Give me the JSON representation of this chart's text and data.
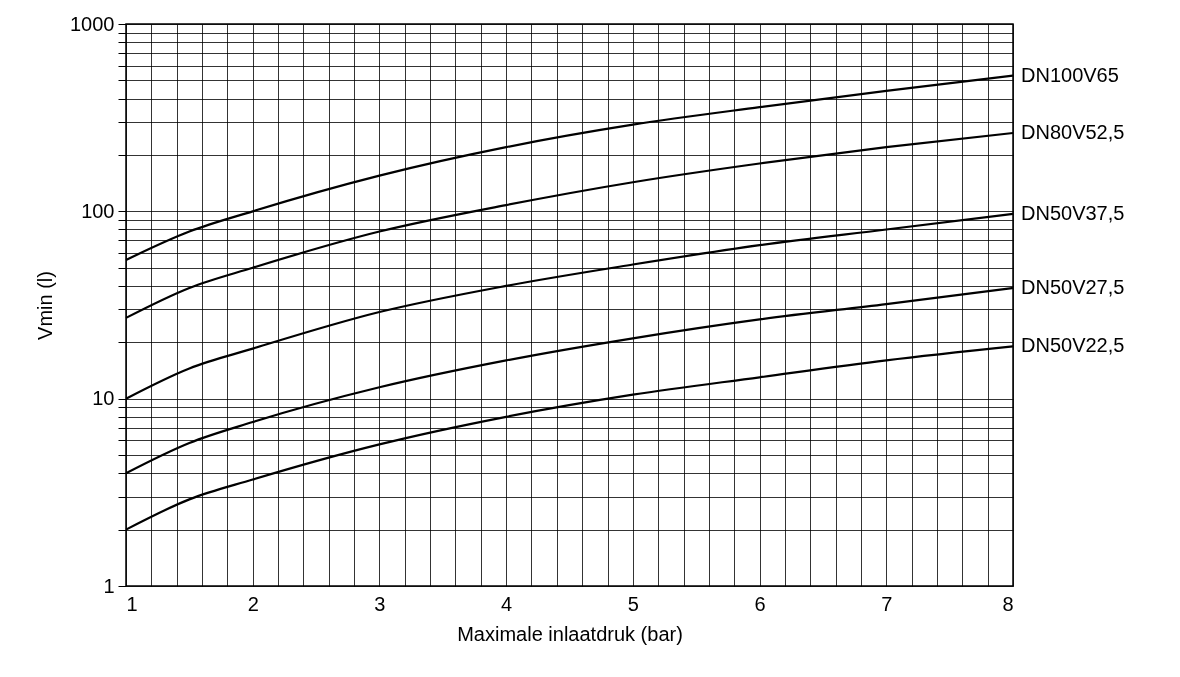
{
  "chart_data": {
    "type": "line",
    "xlabel": "Maximale inlaatdruk (bar)",
    "ylabel": "Vmin (l)",
    "log": "y",
    "grid": true,
    "legend": false,
    "marker": "none",
    "line_style": "solid",
    "x": [
      1,
      1.5,
      2,
      3,
      4,
      5,
      6,
      7,
      8
    ],
    "xlim": [
      1,
      8
    ],
    "ylim": [
      1,
      1000
    ],
    "xticks": [
      1,
      {
        "value": 1.2,
        "label": null
      },
      {
        "value": 1.4,
        "label": null
      },
      {
        "value": 1.6,
        "label": null
      },
      {
        "value": 1.8,
        "label": null
      },
      2,
      {
        "value": 2.2,
        "label": null
      },
      {
        "value": 2.4,
        "label": null
      },
      {
        "value": 2.6,
        "label": null
      },
      {
        "value": 2.8,
        "label": null
      },
      3,
      {
        "value": 3.2,
        "label": null
      },
      {
        "value": 3.4,
        "label": null
      },
      {
        "value": 3.6,
        "label": null
      },
      {
        "value": 3.8,
        "label": null
      },
      4,
      {
        "value": 4.2,
        "label": null
      },
      {
        "value": 4.4,
        "label": null
      },
      {
        "value": 4.6,
        "label": null
      },
      {
        "value": 4.8,
        "label": null
      },
      5,
      {
        "value": 5.2,
        "label": null
      },
      {
        "value": 5.4,
        "label": null
      },
      {
        "value": 5.6,
        "label": null
      },
      {
        "value": 5.8,
        "label": null
      },
      6,
      {
        "value": 6.2,
        "label": null
      },
      {
        "value": 6.4,
        "label": null
      },
      {
        "value": 6.6,
        "label": null
      },
      {
        "value": 6.8,
        "label": null
      },
      7,
      {
        "value": 7.2,
        "label": null
      },
      {
        "value": 7.4,
        "label": null
      },
      {
        "value": 7.6,
        "label": null
      },
      {
        "value": 7.8,
        "label": null
      },
      8
    ],
    "yticks": [
      1,
      {
        "value": 2,
        "label": null
      },
      {
        "value": 3,
        "label": null
      },
      {
        "value": 4,
        "label": null
      },
      {
        "value": 5,
        "label": null
      },
      {
        "value": 6,
        "label": null
      },
      {
        "value": 7,
        "label": null
      },
      {
        "value": 8,
        "label": null
      },
      {
        "value": 9,
        "label": null
      },
      10,
      {
        "value": 20,
        "label": null
      },
      {
        "value": 30,
        "label": null
      },
      {
        "value": 40,
        "label": null
      },
      {
        "value": 50,
        "label": null
      },
      {
        "value": 60,
        "label": null
      },
      {
        "value": 70,
        "label": null
      },
      {
        "value": 80,
        "label": null
      },
      {
        "value": 90,
        "label": null
      },
      100,
      {
        "value": 200,
        "label": null
      },
      {
        "value": 300,
        "label": null
      },
      {
        "value": 400,
        "label": null
      },
      {
        "value": 500,
        "label": null
      },
      {
        "value": 600,
        "label": null
      },
      {
        "value": 700,
        "label": null
      },
      {
        "value": 800,
        "label": null
      },
      {
        "value": 900,
        "label": null
      },
      1000
    ],
    "series": [
      {
        "name": "DN100V65",
        "color": "#000000",
        "values": [
          55,
          78,
          100,
          155,
          220,
          290,
          360,
          440,
          530
        ]
      },
      {
        "name": "DN80V52,5",
        "color": "#000000",
        "values": [
          27,
          39,
          50,
          78,
          108,
          143,
          180,
          220,
          262
        ]
      },
      {
        "name": "DN50V37,5",
        "color": "#000000",
        "values": [
          10,
          14.5,
          18.5,
          29,
          40,
          52,
          66,
          80,
          97
        ]
      },
      {
        "name": "DN50V27,5",
        "color": "#000000",
        "values": [
          4,
          5.8,
          7.5,
          11.5,
          16,
          21,
          26.5,
          32,
          39
        ]
      },
      {
        "name": "DN50V22,5",
        "color": "#000000",
        "values": [
          2,
          2.9,
          3.7,
          5.7,
          8,
          10.5,
          13,
          16,
          19
        ]
      }
    ]
  }
}
